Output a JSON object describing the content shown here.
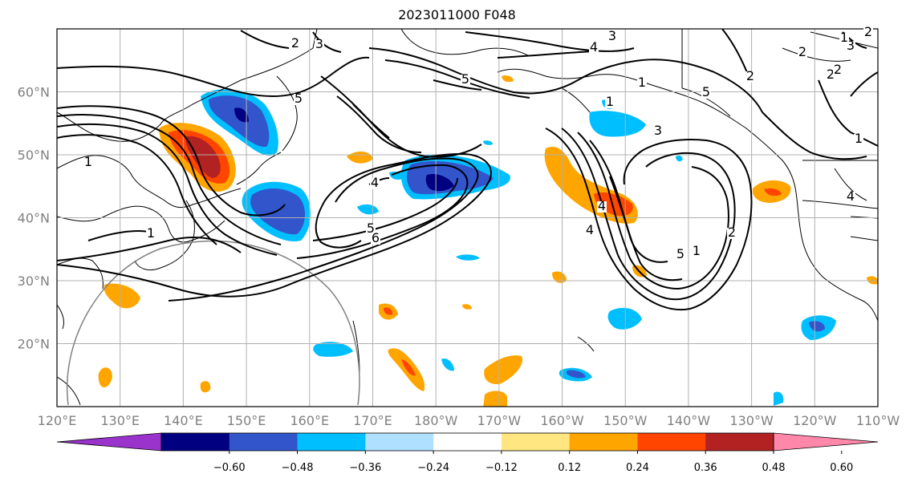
{
  "title": "2023011000 F048",
  "map": {
    "projection": "PlateCarree",
    "lon_range": [
      120,
      250
    ],
    "lat_range": [
      10,
      70
    ],
    "lon_ticks": [
      "120°E",
      "130°E",
      "140°E",
      "150°E",
      "160°E",
      "170°E",
      "180°W",
      "170°W",
      "160°W",
      "150°W",
      "140°W",
      "130°W",
      "120°W",
      "110°W"
    ],
    "lat_ticks": [
      "20°N",
      "30°N",
      "40°N",
      "50°N",
      "60°N"
    ],
    "contour_labels": [
      "1",
      "2",
      "3",
      "4",
      "5",
      "6",
      "1",
      "5",
      "3",
      "4",
      "3",
      "2",
      "1",
      "2",
      "4",
      "5",
      "1",
      "2",
      "4",
      "5",
      "1",
      "2",
      "1",
      "5",
      "3",
      "1",
      "4",
      "2",
      "2"
    ]
  },
  "colorbar": {
    "tick_labels": [
      "−0.60",
      "−0.48",
      "−0.36",
      "−0.24",
      "−0.12",
      "0.12",
      "0.24",
      "0.36",
      "0.48",
      "0.60"
    ],
    "colors": [
      "#9933cc",
      "#000080",
      "#3355cc",
      "#00bfff",
      "#b0e0ff",
      "#ffffff",
      "#ffe680",
      "#ffa500",
      "#ff4500",
      "#b22222",
      "#ff88aa"
    ]
  }
}
